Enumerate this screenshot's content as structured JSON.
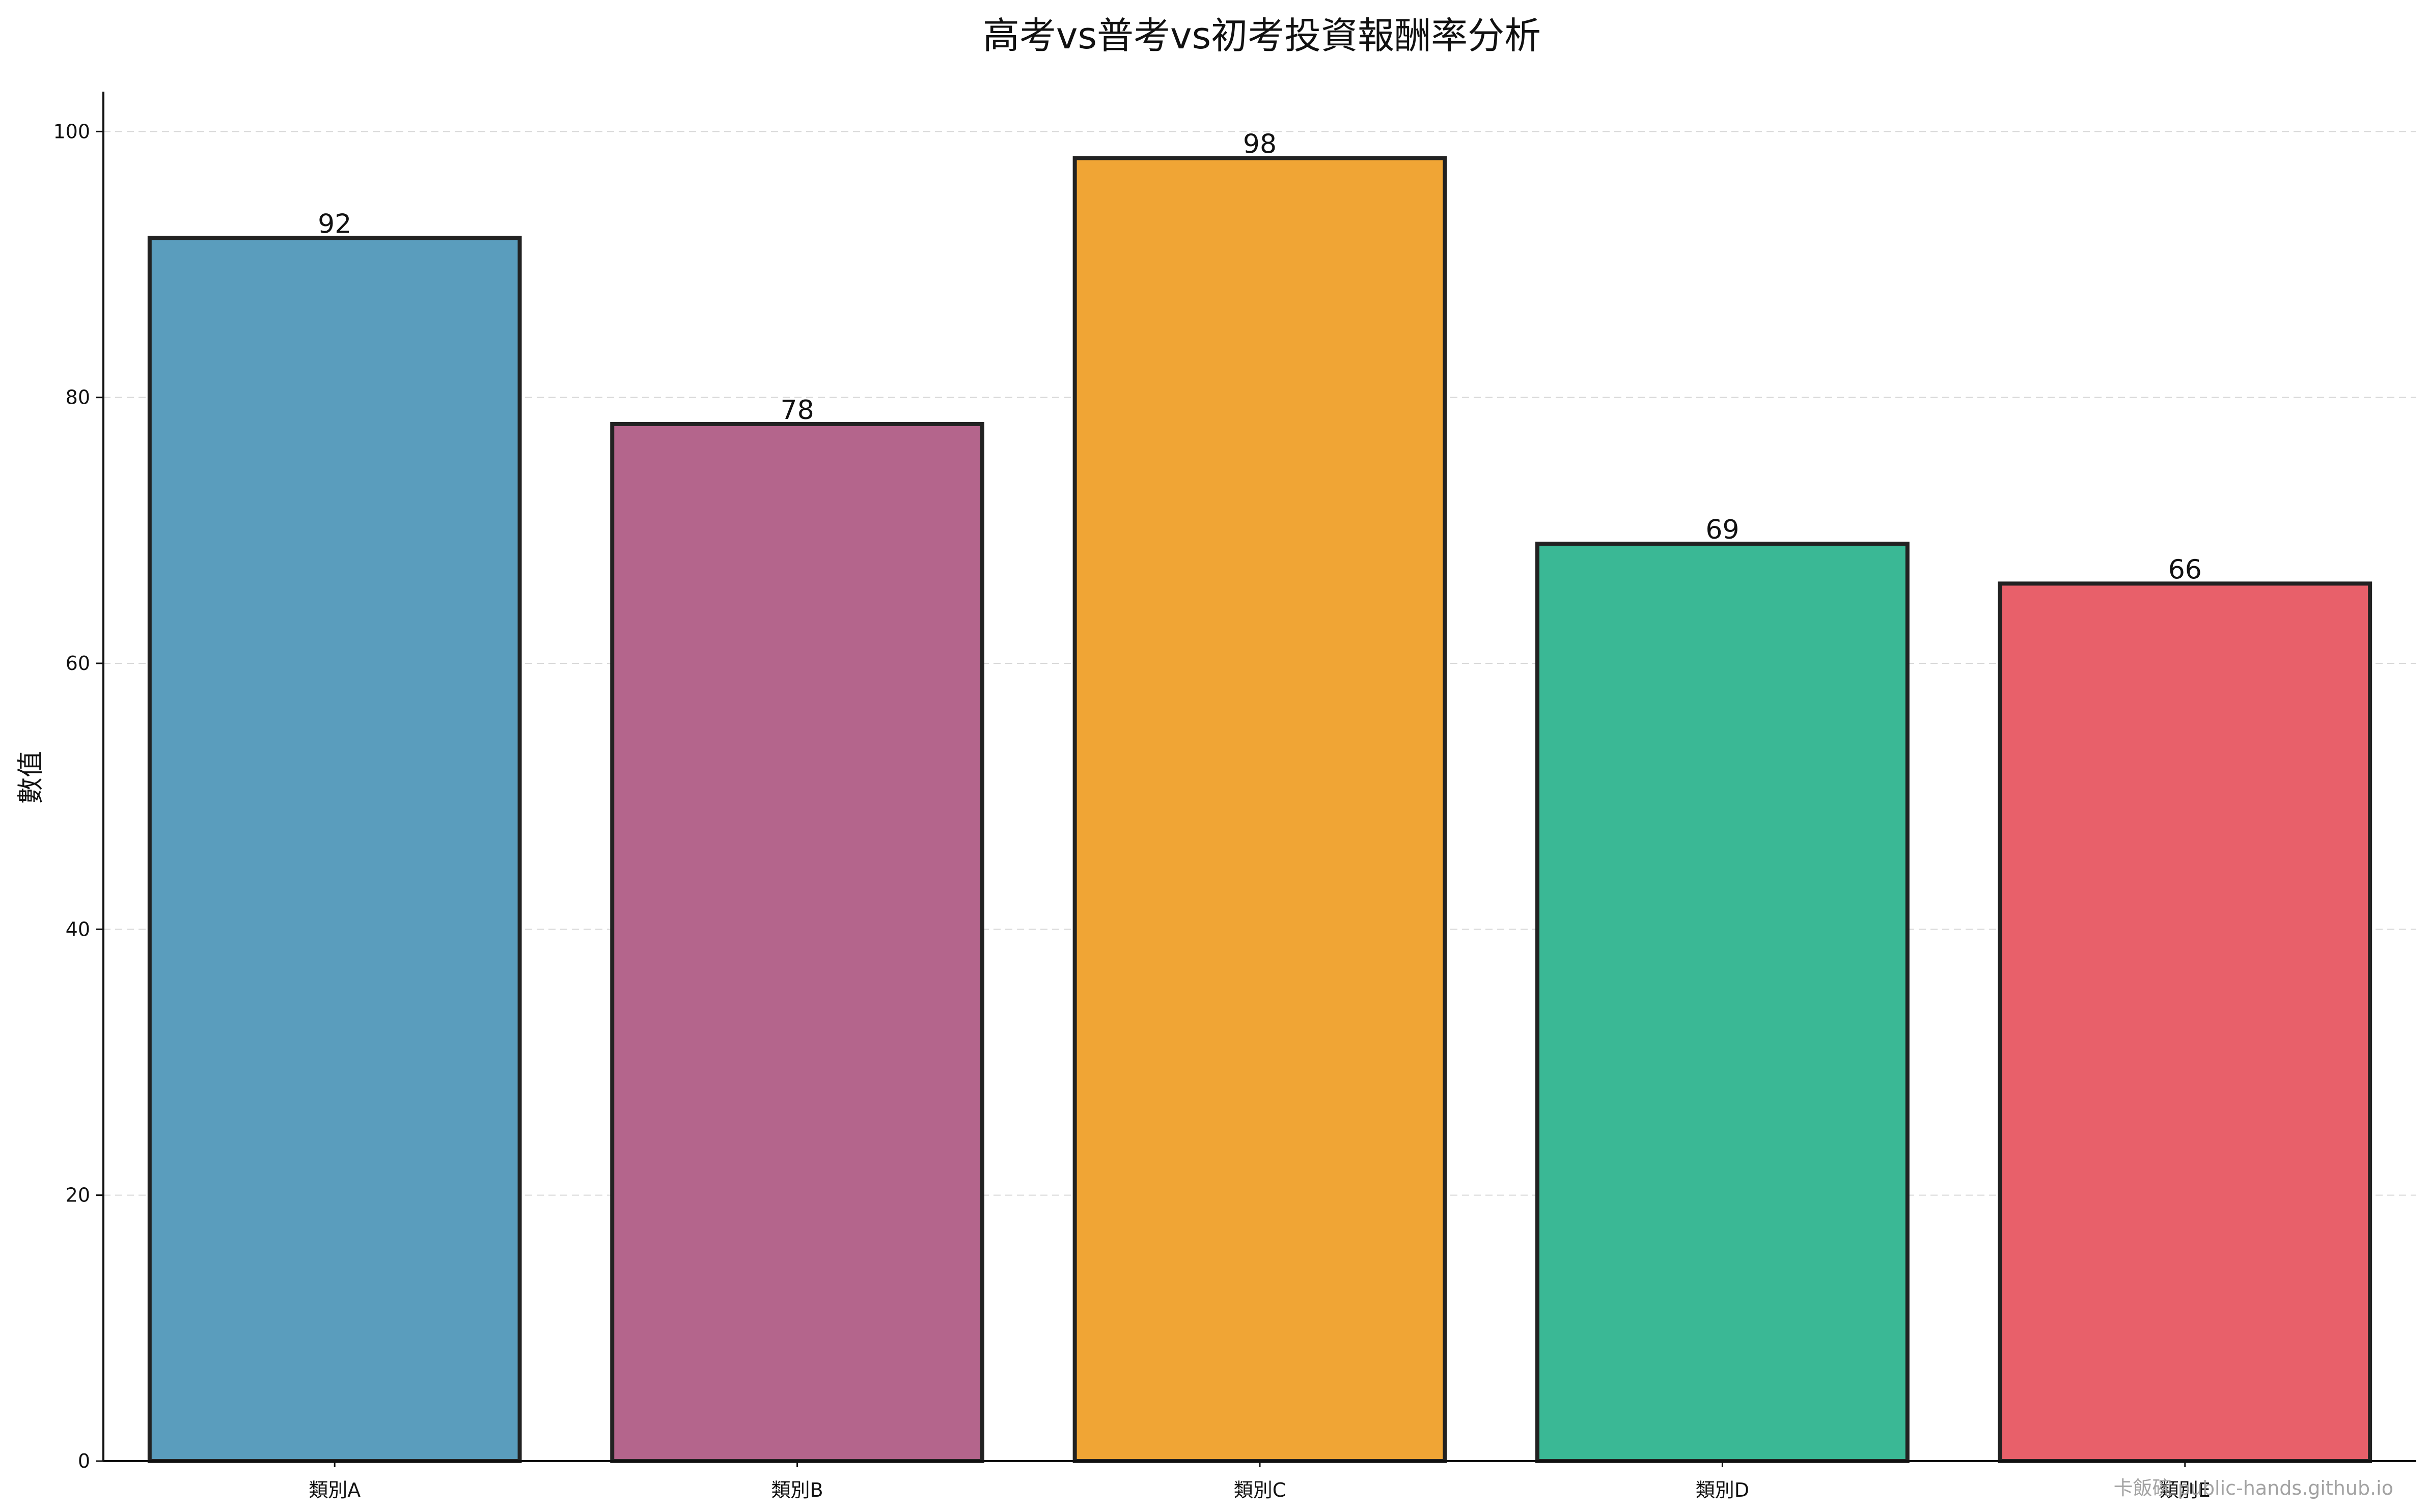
{
  "chart_data": {
    "type": "bar",
    "title": "高考vs普考vs初考投資報酬率分析",
    "xlabel": "",
    "ylabel": "數值",
    "categories": [
      "類別A",
      "類別B",
      "類別C",
      "類別D",
      "類別E"
    ],
    "values": [
      92,
      78,
      98,
      69,
      66
    ],
    "colors": [
      "#5A9DBD",
      "#B4658C",
      "#F0A535",
      "#3AB895",
      "#E8606A"
    ],
    "ylim": [
      0,
      103
    ],
    "yticks": [
      0,
      20,
      40,
      60,
      80,
      100
    ],
    "grid": true
  },
  "watermark": "卡飯碗 public-hands.github.io"
}
